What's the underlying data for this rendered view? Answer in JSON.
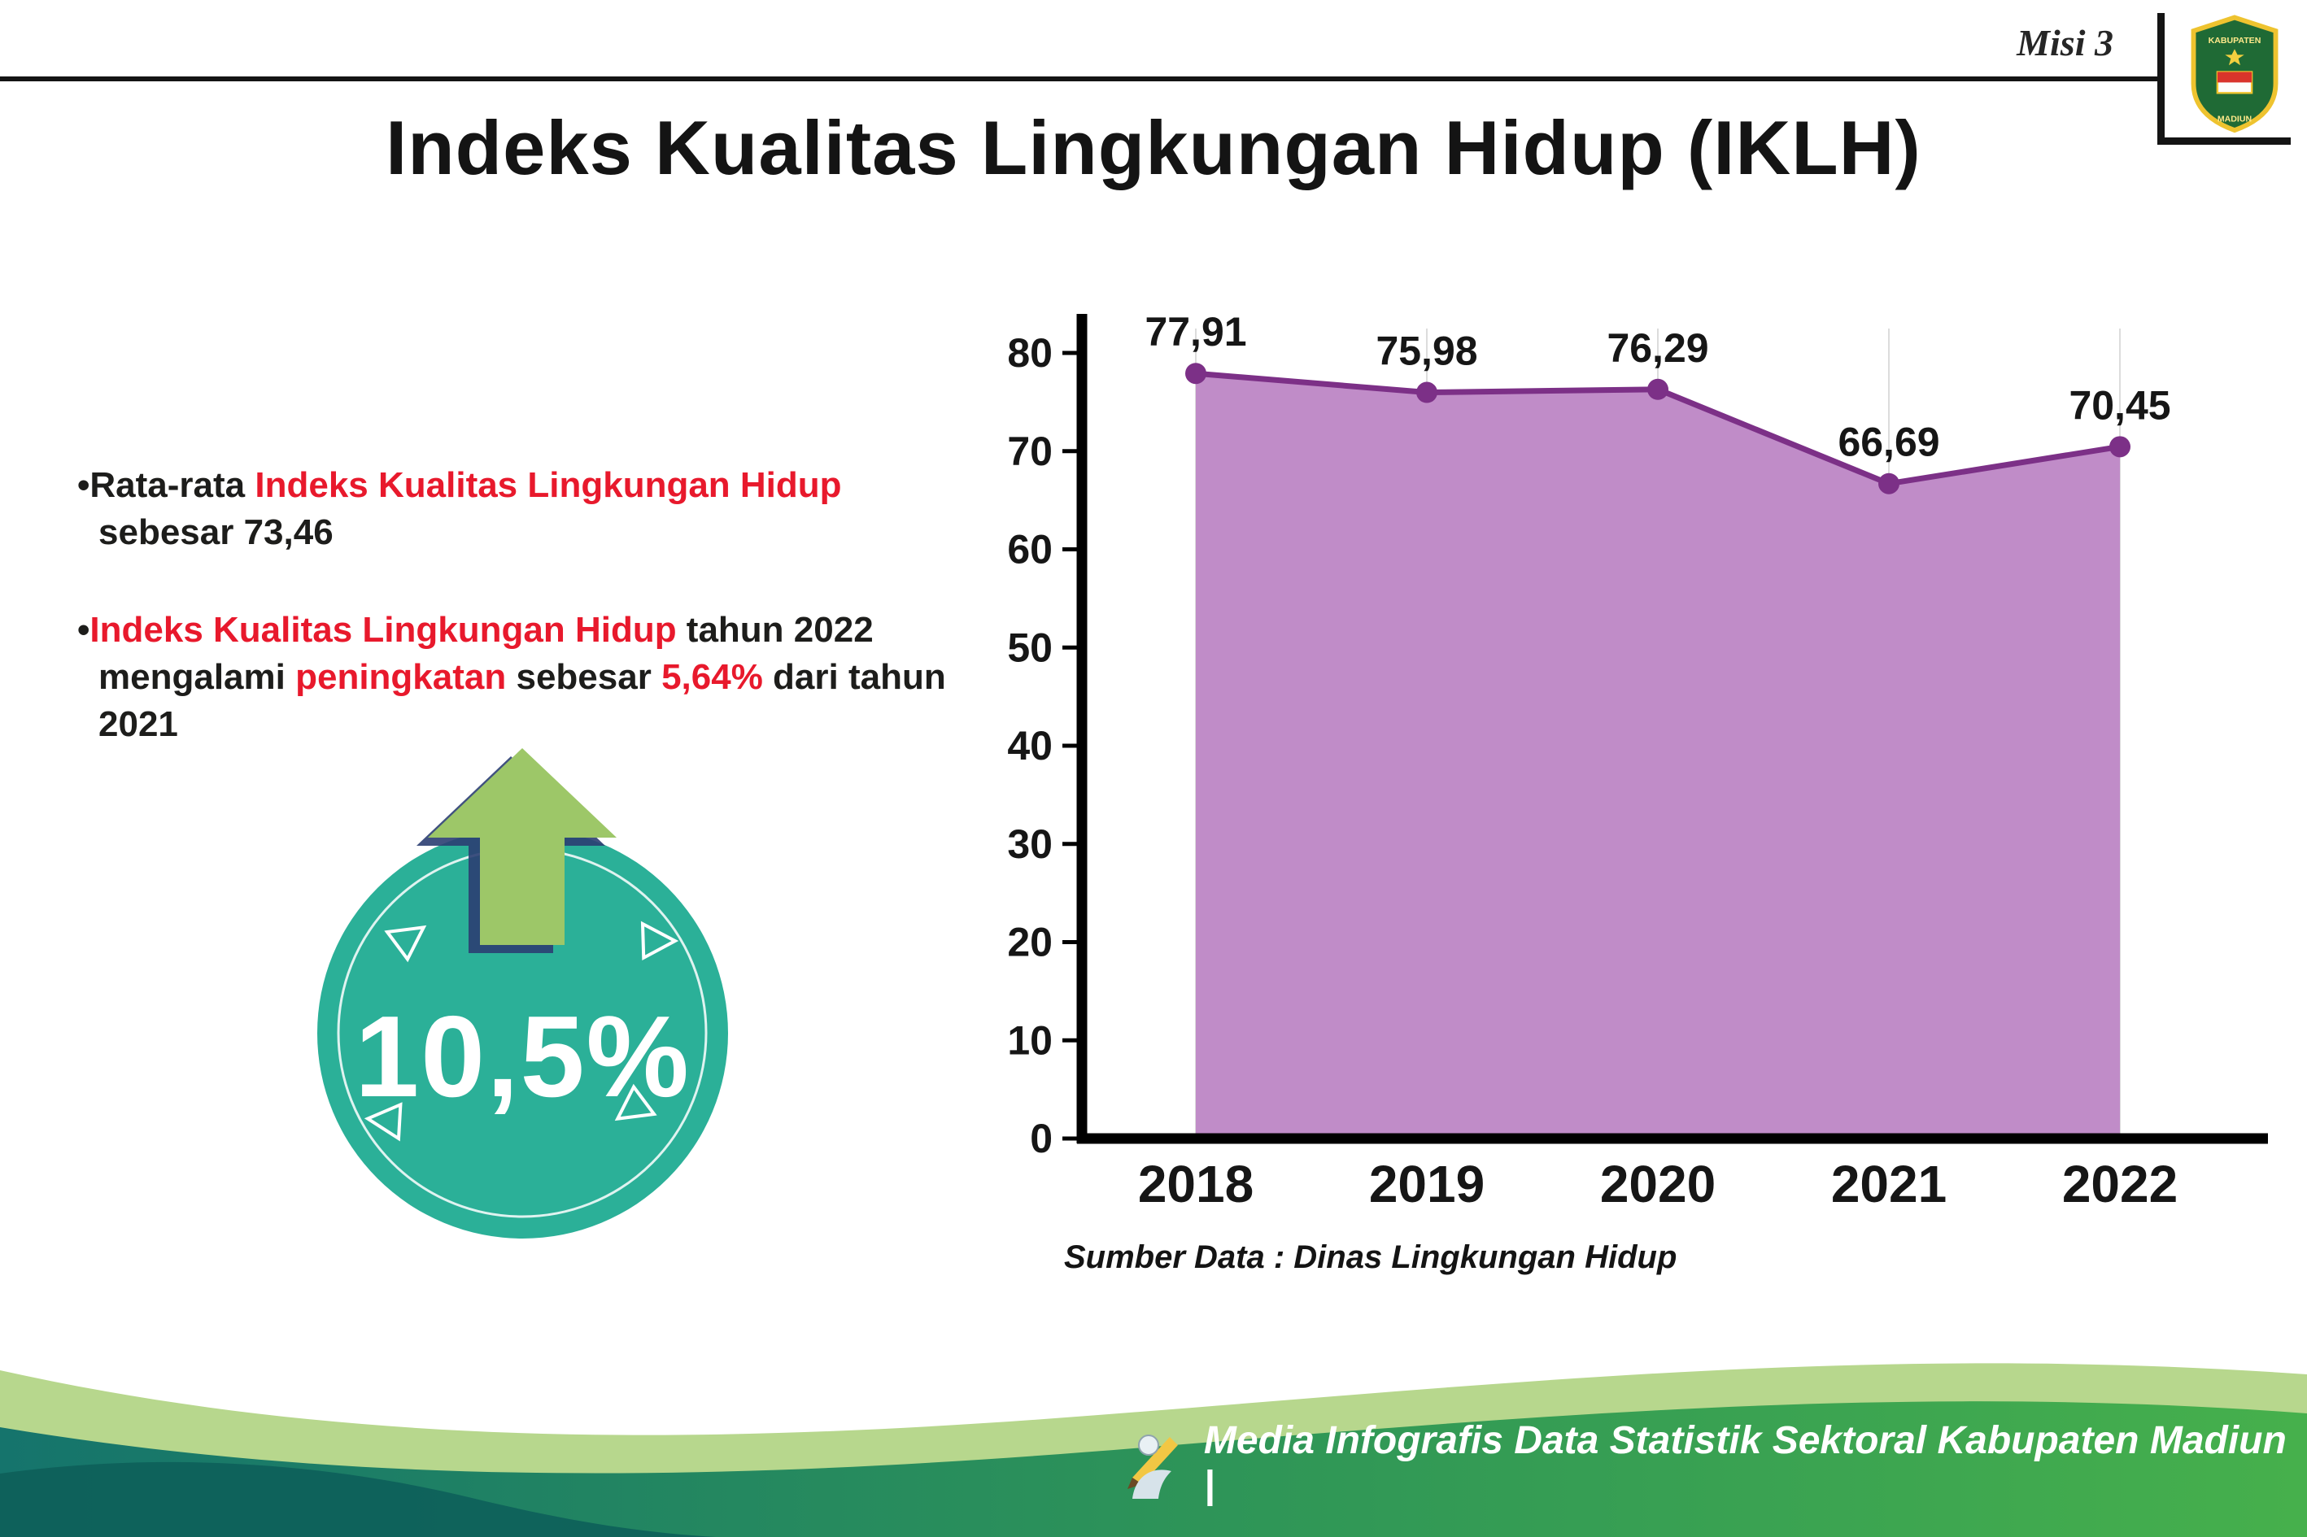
{
  "colors": {
    "dark": "#1d1d1b",
    "red": "#e8192c",
    "purple_fill": "#c08cc8",
    "purple_line": "#7c3087",
    "teal_badge": "#2bb098",
    "arrow_green": "#9dc768",
    "arrow_outline": "#2b3e72",
    "footer_teal": "#15746c",
    "footer_mid": "#2f9657",
    "footer_green": "#46b04c",
    "footer_light": "#b7d78d",
    "footer_dark": "#0d5f5a"
  },
  "header": {
    "misi": "Misi 3",
    "title": "Indeks Kualitas Lingkungan Hidup (IKLH)",
    "logo": {
      "top": "KABUPATEN",
      "bottom": "MADIUN"
    }
  },
  "bullets": {
    "marker": "•",
    "item1": {
      "segments": [
        {
          "text": "Rata-rata ",
          "color": "dark"
        },
        {
          "text": "Indeks Kualitas Lingkungan Hidup",
          "color": "red"
        },
        {
          "text": " sebesar 73,46",
          "color": "dark"
        }
      ]
    },
    "item2": {
      "segments": [
        {
          "text": "Indeks Kualitas Lingkungan Hidup",
          "color": "red"
        },
        {
          "text": " tahun 2022 mengalami ",
          "color": "dark"
        },
        {
          "text": "peningkatan",
          "color": "red"
        },
        {
          "text": " sebesar ",
          "color": "dark"
        },
        {
          "text": "5,64%",
          "color": "red"
        },
        {
          "text": " dari tahun 2021",
          "color": "dark"
        }
      ]
    }
  },
  "badge": {
    "value": "10,5%"
  },
  "chart_data": {
    "type": "area",
    "categories": [
      "2018",
      "2019",
      "2020",
      "2021",
      "2022"
    ],
    "values": [
      77.91,
      75.98,
      76.29,
      66.69,
      70.45
    ],
    "point_labels": [
      "77,91",
      "75,98",
      "76,29",
      "66,69",
      "70,45"
    ],
    "title": "Indeks Kualitas Lingkungan Hidup (IKLH)",
    "xlabel": "",
    "ylabel": "",
    "ylim": [
      0,
      80
    ],
    "yticks": [
      0,
      10,
      20,
      30,
      40,
      50,
      60,
      70,
      80
    ],
    "grid": "vertical-per-category",
    "legend": "none",
    "source": "Sumber Data : Dinas Lingkungan Hidup"
  },
  "footer": {
    "credit": "Media Infografis Data Statistik Sektoral Kabupaten Madiun |"
  }
}
